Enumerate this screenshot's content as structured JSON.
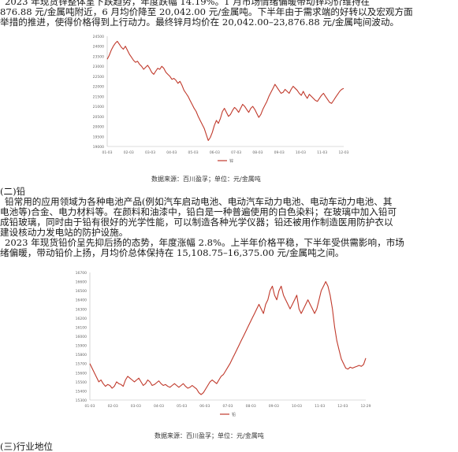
{
  "doc": {
    "lines_top": [
      "2023 年现货锌整体呈下跌趋势，年度跌幅 14.19%。1 月市场情绪偏暖带动锌均价维持在",
      "876.88 元/金属吨附近，6 月均价降至 20,042.00 元/金属吨。下半年由于需求端的好转以及宏观方面",
      "举措的推进，使得价格得到上行动力。最终锌月均价在 20,042.00–23,876.88 元/金属吨间波动。"
    ],
    "caption_zinc": "数据来源：百川盈孚；单位：元/金属吨",
    "lead_heading": "(二)铅",
    "lead_lines": [
      "铅常用的应用领域为各种电池产品(例如汽车启动电池、电动汽车动力电池、电动车动力电池、其",
      "电池等)合金、电力材料等。在颜料和油漆中，铅白是一种普遍使用的白色染料；在玻璃中加入铅可",
      "成铅玻璃，同时由于铅有很好的光学性能，可以制造各种光学仪器；铅还被用作制造医用防护衣以",
      "建设核动力发电站的防护设施。",
      "2023 年现货铅价呈先抑后扬的态势，年度涨幅 2.8%。上半年价格平稳，下半年受供需影响，市场",
      "绪偏暖，带动铅价上扬，月均价总体保持在 15,108.75–16,375.00 元/金属吨之间。"
    ],
    "caption_lead": "数据来源：百川盈孚；单位：元/金属吨",
    "section3": "(三)行业地位"
  },
  "chart_data": [
    {
      "type": "line",
      "xlabel": "",
      "ylabel": "",
      "y_ticks": [
        "24500",
        "24000",
        "23500",
        "23000",
        "22500",
        "22000",
        "21500",
        "21000",
        "20500",
        "20000",
        "19500",
        "19000"
      ],
      "x_ticks": [
        "01-03",
        "02-03",
        "03-03",
        "04-03",
        "05-03",
        "06-03",
        "07-03",
        "08-03",
        "09-03",
        "10-03",
        "11-03",
        "12-03"
      ],
      "ylim": [
        19000,
        24500
      ],
      "legend": "锌",
      "colors": {
        "line": "#c0392b"
      },
      "y": [
        23350,
        23550,
        23800,
        24000,
        24150,
        24250,
        24100,
        23950,
        23850,
        24000,
        23800,
        23600,
        23450,
        23300,
        23200,
        23250,
        23100,
        23000,
        22850,
        22950,
        23050,
        22900,
        22700,
        22600,
        22750,
        22900,
        22850,
        23000,
        22900,
        22700,
        22600,
        22500,
        22350,
        22400,
        22300,
        22150,
        22250,
        22050,
        21800,
        21650,
        21500,
        21300,
        21100,
        20900,
        20750,
        20500,
        20300,
        20100,
        19900,
        19600,
        19300,
        19450,
        19700,
        20050,
        20300,
        20150,
        20400,
        20750,
        20900,
        20700,
        20500,
        20600,
        20800,
        20950,
        20850,
        20700,
        20900,
        21100,
        21000,
        20850,
        20700,
        20900,
        21000,
        20850,
        20650,
        20450,
        20600,
        20850,
        21050,
        21250,
        21500,
        21700,
        21900,
        22100,
        21950,
        21800,
        21650,
        21700,
        21850,
        21750,
        21650,
        21850,
        22000,
        21900,
        21800,
        21650,
        21550,
        21750,
        21550,
        21400,
        21600,
        21500,
        21400,
        21300,
        21250,
        21400,
        21550,
        21650,
        21500,
        21350,
        21200,
        21150,
        21300,
        21450,
        21600,
        21750,
        21850,
        21900
      ]
    },
    {
      "type": "line",
      "xlabel": "",
      "ylabel": "",
      "y_ticks": [
        "16700",
        "16600",
        "16500",
        "16400",
        "16300",
        "16200",
        "16100",
        "16000",
        "15900",
        "15800",
        "15700",
        "15600",
        "15500",
        "15400",
        "15300"
      ],
      "x_ticks": [
        "01-03",
        "02-03",
        "03-03",
        "04-03",
        "05-03",
        "06-03",
        "07-03",
        "08-03",
        "09-03",
        "10-03",
        "11-03",
        "12-03",
        "12-29"
      ],
      "ylim": [
        15300,
        16700
      ],
      "legend": "铅",
      "colors": {
        "line": "#c0392b"
      },
      "y": [
        15700,
        15650,
        15600,
        15550,
        15500,
        15520,
        15480,
        15450,
        15470,
        15460,
        15430,
        15450,
        15500,
        15480,
        15470,
        15450,
        15520,
        15560,
        15540,
        15520,
        15500,
        15520,
        15540,
        15500,
        15460,
        15480,
        15520,
        15500,
        15460,
        15470,
        15490,
        15510,
        15480,
        15460,
        15470,
        15450,
        15440,
        15460,
        15480,
        15460,
        15440,
        15460,
        15480,
        15450,
        15430,
        15440,
        15460,
        15440,
        15420,
        15380,
        15360,
        15380,
        15420,
        15460,
        15500,
        15520,
        15500,
        15480,
        15520,
        15560,
        15580,
        15620,
        15660,
        15700,
        15750,
        15800,
        15850,
        15900,
        15950,
        16000,
        16050,
        16100,
        16150,
        16200,
        16250,
        16300,
        16350,
        16300,
        16250,
        16350,
        16400,
        16500,
        16550,
        16450,
        16400,
        16500,
        16550,
        16450,
        16400,
        16350,
        16300,
        16350,
        16400,
        16450,
        16300,
        16250,
        16300,
        16350,
        16400,
        16350,
        16300,
        16250,
        16300,
        16400,
        16500,
        16550,
        16600,
        16550,
        16450,
        16300,
        16100,
        15950,
        15850,
        15750,
        15700,
        15650,
        15640,
        15660,
        15650,
        15660,
        15670,
        15680,
        15670,
        15690,
        15760
      ]
    }
  ]
}
